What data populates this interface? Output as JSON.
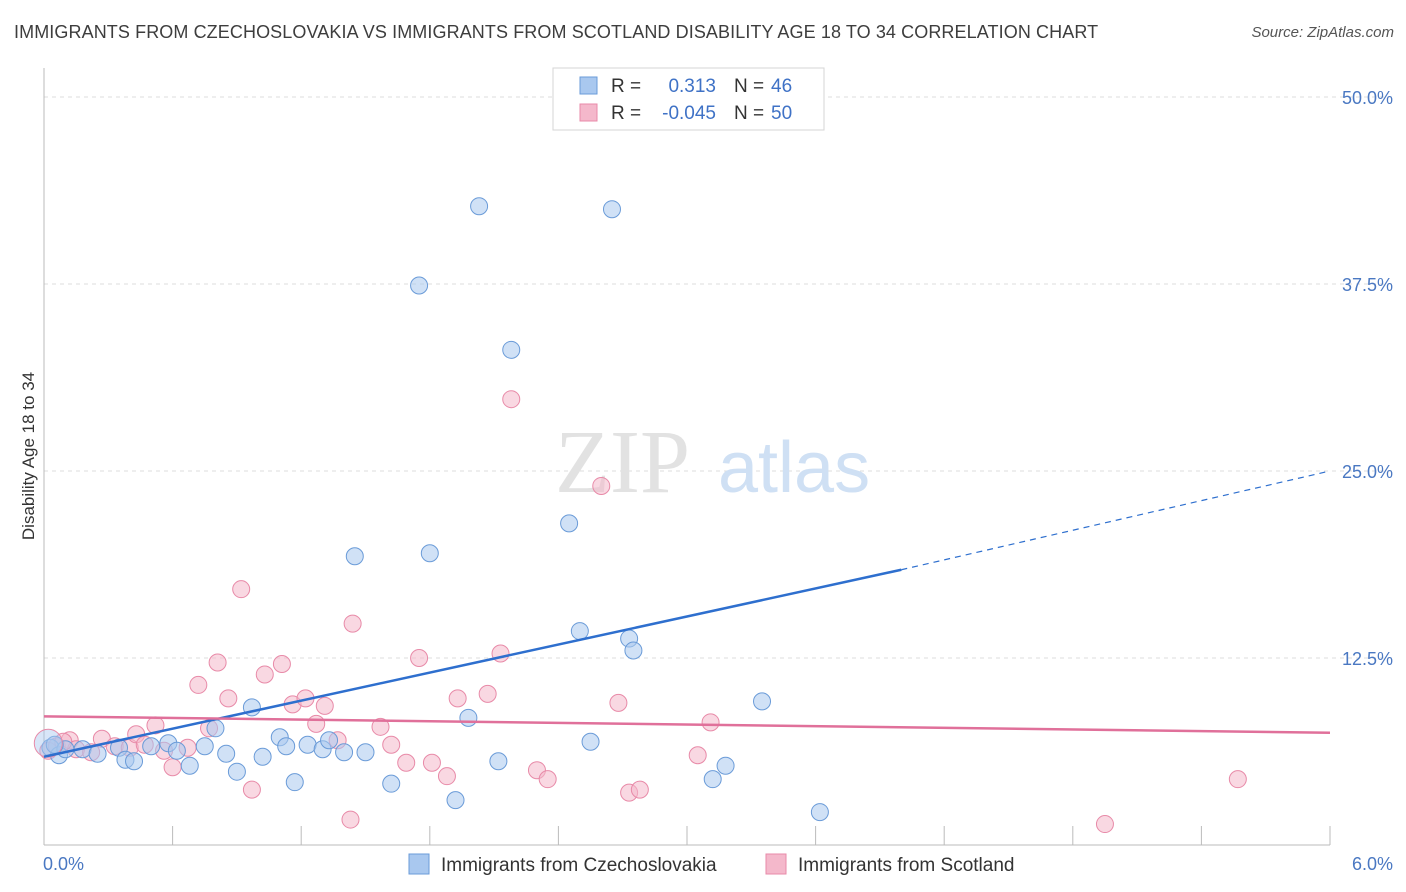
{
  "header": {
    "title": "IMMIGRANTS FROM CZECHOSLOVAKIA VS IMMIGRANTS FROM SCOTLAND DISABILITY AGE 18 TO 34 CORRELATION CHART",
    "source": "Source: ZipAtlas.com"
  },
  "watermark": {
    "zip": "ZIP",
    "atlas": "atlas"
  },
  "colors": {
    "series1": "#a9c8ef",
    "series1_stroke": "#6a9bd8",
    "series1_line": "#2e6fce",
    "series2": "#f4b8cb",
    "series2_stroke": "#e88aa8",
    "series2_line": "#e0709a",
    "tick": "#4a78c2",
    "grid": "#dddddd"
  },
  "legend": {
    "rows": [
      {
        "r_label": "R =",
        "r_value": "0.313",
        "n_label": "N =",
        "n_value": "46"
      },
      {
        "r_label": "R =",
        "r_value": "-0.045",
        "n_label": "N =",
        "n_value": "50"
      }
    ]
  },
  "chart_data": {
    "type": "scatter",
    "title": "IMMIGRANTS FROM CZECHOSLOVAKIA VS IMMIGRANTS FROM SCOTLAND DISABILITY AGE 18 TO 34 CORRELATION CHART",
    "xlabel": "",
    "ylabel": "Disability Age 18 to 34",
    "xlim": [
      0,
      6
    ],
    "ylim": [
      0,
      50
    ],
    "x_tick_labels": [
      {
        "value": 0,
        "label": "0.0%"
      },
      {
        "value": 6,
        "label": "6.0%"
      }
    ],
    "y_tick_labels": [
      {
        "value": 12.5,
        "label": "12.5%"
      },
      {
        "value": 25,
        "label": "25.0%"
      },
      {
        "value": 37.5,
        "label": "37.5%"
      },
      {
        "value": 50,
        "label": "50.0%"
      }
    ],
    "series": [
      {
        "name": "Immigrants from Czechoslovakia",
        "r": 0.313,
        "n": 46,
        "trend": {
          "x0": 0,
          "y0": 5.9,
          "x1": 4.0,
          "y1": 18.4,
          "dash_to_x": 6.0,
          "dash_to_y": 25.0
        },
        "points": [
          [
            0.03,
            6.5
          ],
          [
            0.07,
            6.0
          ],
          [
            0.1,
            6.4
          ],
          [
            0.18,
            6.4
          ],
          [
            0.25,
            6.1
          ],
          [
            0.35,
            6.5
          ],
          [
            0.38,
            5.7
          ],
          [
            0.42,
            5.6
          ],
          [
            0.5,
            6.6
          ],
          [
            0.58,
            6.8
          ],
          [
            0.62,
            6.3
          ],
          [
            0.68,
            5.3
          ],
          [
            0.75,
            6.6
          ],
          [
            0.8,
            7.8
          ],
          [
            0.85,
            6.1
          ],
          [
            0.9,
            4.9
          ],
          [
            0.97,
            9.2
          ],
          [
            1.02,
            5.9
          ],
          [
            1.1,
            7.2
          ],
          [
            1.13,
            6.6
          ],
          [
            1.17,
            4.2
          ],
          [
            1.23,
            6.7
          ],
          [
            1.3,
            6.4
          ],
          [
            1.33,
            7.0
          ],
          [
            1.4,
            6.2
          ],
          [
            1.45,
            19.3
          ],
          [
            1.5,
            6.2
          ],
          [
            1.62,
            4.1
          ],
          [
            1.75,
            37.4
          ],
          [
            1.8,
            19.5
          ],
          [
            1.92,
            3.0
          ],
          [
            1.98,
            8.5
          ],
          [
            2.03,
            42.7
          ],
          [
            2.12,
            5.6
          ],
          [
            2.18,
            33.1
          ],
          [
            2.45,
            21.5
          ],
          [
            2.5,
            14.3
          ],
          [
            2.55,
            6.9
          ],
          [
            2.65,
            42.5
          ],
          [
            2.73,
            13.8
          ],
          [
            2.75,
            13.0
          ],
          [
            3.12,
            4.4
          ],
          [
            3.18,
            5.3
          ],
          [
            3.35,
            9.6
          ],
          [
            3.62,
            2.2
          ],
          [
            0.05,
            6.7
          ]
        ]
      },
      {
        "name": "Immigrants from Scotland",
        "r": -0.045,
        "n": 50,
        "trend": {
          "x0": 0,
          "y0": 8.6,
          "x1": 6.0,
          "y1": 7.5
        },
        "points": [
          [
            0.02,
            6.3
          ],
          [
            0.06,
            6.6
          ],
          [
            0.12,
            7.0
          ],
          [
            0.15,
            6.4
          ],
          [
            0.27,
            7.1
          ],
          [
            0.33,
            6.6
          ],
          [
            0.4,
            6.5
          ],
          [
            0.43,
            7.4
          ],
          [
            0.47,
            6.7
          ],
          [
            0.52,
            8.0
          ],
          [
            0.56,
            6.3
          ],
          [
            0.6,
            5.2
          ],
          [
            0.67,
            6.5
          ],
          [
            0.72,
            10.7
          ],
          [
            0.77,
            7.8
          ],
          [
            0.81,
            12.2
          ],
          [
            0.86,
            9.8
          ],
          [
            0.92,
            17.1
          ],
          [
            0.97,
            3.7
          ],
          [
            1.03,
            11.4
          ],
          [
            1.11,
            12.1
          ],
          [
            1.16,
            9.4
          ],
          [
            1.22,
            9.8
          ],
          [
            1.27,
            8.1
          ],
          [
            1.31,
            9.3
          ],
          [
            1.37,
            7.0
          ],
          [
            1.43,
            1.7
          ],
          [
            1.44,
            14.8
          ],
          [
            1.57,
            7.9
          ],
          [
            1.62,
            6.7
          ],
          [
            1.69,
            5.5
          ],
          [
            1.75,
            12.5
          ],
          [
            1.81,
            5.5
          ],
          [
            1.88,
            4.6
          ],
          [
            1.93,
            9.8
          ],
          [
            2.07,
            10.1
          ],
          [
            2.13,
            12.8
          ],
          [
            2.18,
            29.8
          ],
          [
            2.3,
            5.0
          ],
          [
            2.35,
            4.4
          ],
          [
            2.6,
            24.0
          ],
          [
            2.68,
            9.5
          ],
          [
            2.73,
            3.5
          ],
          [
            2.78,
            3.7
          ],
          [
            3.05,
            6.0
          ],
          [
            3.11,
            8.2
          ],
          [
            4.95,
            1.4
          ],
          [
            5.57,
            4.4
          ],
          [
            0.09,
            6.9
          ],
          [
            0.22,
            6.2
          ]
        ]
      }
    ]
  }
}
